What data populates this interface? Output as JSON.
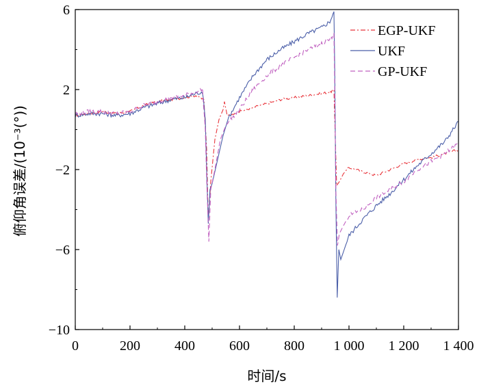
{
  "chart_data": {
    "type": "line",
    "xlabel": "时间/s",
    "ylabel": "俯仰角误差/(10⁻³(°))",
    "xlim": [
      0,
      1400
    ],
    "ylim": [
      -10,
      6
    ],
    "x_ticks": [
      0,
      200,
      400,
      600,
      800,
      1000,
      1200,
      1400
    ],
    "x_tick_labels": [
      "0",
      "200",
      "400",
      "600",
      "800",
      "1 000",
      "1 200",
      "1 400"
    ],
    "y_ticks": [
      -10,
      -6,
      -2,
      2,
      6
    ],
    "y_tick_labels": [
      "−10",
      "−6",
      "−2",
      "2",
      "6"
    ],
    "legend_position": "top-right",
    "series": [
      {
        "name": "EGP-UKF",
        "color": "#e8333a",
        "dash": "dashdot",
        "points": [
          [
            0,
            0.7
          ],
          [
            50,
            0.8
          ],
          [
            100,
            0.9
          ],
          [
            150,
            0.8
          ],
          [
            200,
            0.9
          ],
          [
            250,
            1.2
          ],
          [
            300,
            1.4
          ],
          [
            350,
            1.5
          ],
          [
            400,
            1.6
          ],
          [
            440,
            1.7
          ],
          [
            470,
            1.5
          ],
          [
            480,
            -1.0
          ],
          [
            486,
            -4.6
          ],
          [
            495,
            -2.6
          ],
          [
            510,
            -0.5
          ],
          [
            525,
            0.5
          ],
          [
            540,
            1.0
          ],
          [
            545,
            1.4
          ],
          [
            555,
            0.7
          ],
          [
            600,
            0.9
          ],
          [
            650,
            1.1
          ],
          [
            700,
            1.3
          ],
          [
            750,
            1.5
          ],
          [
            800,
            1.6
          ],
          [
            850,
            1.7
          ],
          [
            900,
            1.8
          ],
          [
            935,
            1.9
          ],
          [
            945,
            2.0
          ],
          [
            950,
            -0.5
          ],
          [
            955,
            -2.8
          ],
          [
            965,
            -2.6
          ],
          [
            980,
            -2.2
          ],
          [
            1000,
            -1.9
          ],
          [
            1050,
            -2.1
          ],
          [
            1100,
            -2.3
          ],
          [
            1150,
            -2.0
          ],
          [
            1200,
            -1.7
          ],
          [
            1250,
            -1.5
          ],
          [
            1300,
            -1.4
          ],
          [
            1350,
            -1.2
          ],
          [
            1400,
            -1.0
          ]
        ]
      },
      {
        "name": "UKF",
        "color": "#4a5ea8",
        "dash": "solid",
        "points": [
          [
            0,
            0.7
          ],
          [
            50,
            0.8
          ],
          [
            100,
            0.8
          ],
          [
            150,
            0.7
          ],
          [
            200,
            0.8
          ],
          [
            250,
            1.1
          ],
          [
            300,
            1.3
          ],
          [
            350,
            1.5
          ],
          [
            400,
            1.6
          ],
          [
            440,
            1.8
          ],
          [
            465,
            1.9
          ],
          [
            475,
            0.5
          ],
          [
            480,
            -2.0
          ],
          [
            486,
            -4.7
          ],
          [
            492,
            -3.0
          ],
          [
            500,
            -2.7
          ],
          [
            520,
            -1.5
          ],
          [
            540,
            -0.3
          ],
          [
            560,
            0.6
          ],
          [
            600,
            1.6
          ],
          [
            650,
            2.7
          ],
          [
            700,
            3.5
          ],
          [
            750,
            4.0
          ],
          [
            800,
            4.4
          ],
          [
            850,
            4.8
          ],
          [
            900,
            5.1
          ],
          [
            930,
            5.4
          ],
          [
            945,
            5.9
          ],
          [
            948,
            3.0
          ],
          [
            952,
            -3.5
          ],
          [
            957,
            -8.4
          ],
          [
            963,
            -6.0
          ],
          [
            970,
            -6.5
          ],
          [
            1000,
            -5.3
          ],
          [
            1050,
            -4.5
          ],
          [
            1100,
            -3.8
          ],
          [
            1150,
            -3.2
          ],
          [
            1200,
            -2.5
          ],
          [
            1250,
            -1.8
          ],
          [
            1300,
            -1.2
          ],
          [
            1350,
            -0.6
          ],
          [
            1380,
            0.0
          ],
          [
            1400,
            0.4
          ]
        ]
      },
      {
        "name": "GP-UKF",
        "color": "#c060c0",
        "dash": "dashed",
        "points": [
          [
            0,
            0.8
          ],
          [
            50,
            0.9
          ],
          [
            100,
            0.9
          ],
          [
            150,
            0.8
          ],
          [
            200,
            0.9
          ],
          [
            250,
            1.2
          ],
          [
            300,
            1.4
          ],
          [
            350,
            1.6
          ],
          [
            400,
            1.7
          ],
          [
            440,
            1.9
          ],
          [
            465,
            2.0
          ],
          [
            475,
            0.0
          ],
          [
            480,
            -2.5
          ],
          [
            488,
            -5.6
          ],
          [
            495,
            -3.0
          ],
          [
            510,
            -2.0
          ],
          [
            530,
            -0.5
          ],
          [
            550,
            0.2
          ],
          [
            600,
            1.0
          ],
          [
            650,
            2.0
          ],
          [
            700,
            2.7
          ],
          [
            750,
            3.2
          ],
          [
            800,
            3.6
          ],
          [
            850,
            4.0
          ],
          [
            900,
            4.3
          ],
          [
            930,
            4.5
          ],
          [
            945,
            4.8
          ],
          [
            948,
            2.0
          ],
          [
            952,
            -3.0
          ],
          [
            958,
            -5.8
          ],
          [
            965,
            -5.2
          ],
          [
            980,
            -4.8
          ],
          [
            1000,
            -4.3
          ],
          [
            1050,
            -4.0
          ],
          [
            1100,
            -3.4
          ],
          [
            1150,
            -3.0
          ],
          [
            1200,
            -2.6
          ],
          [
            1250,
            -2.0
          ],
          [
            1300,
            -1.6
          ],
          [
            1350,
            -1.2
          ],
          [
            1400,
            -0.7
          ]
        ]
      }
    ]
  }
}
